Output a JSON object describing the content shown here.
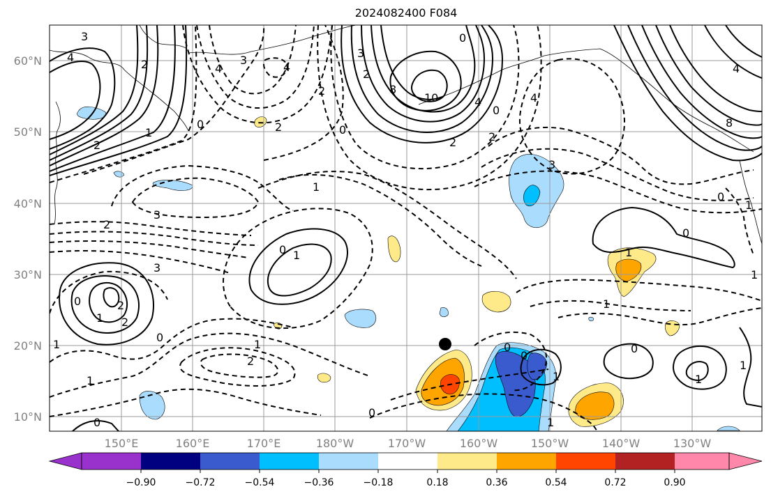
{
  "figure": {
    "title": "2024082400 F084",
    "lat_ticks": [
      "60°N",
      "50°N",
      "40°N",
      "30°N",
      "20°N",
      "10°N"
    ],
    "lon_ticks": [
      "150°E",
      "160°E",
      "170°E",
      "180°W",
      "170°W",
      "160°W",
      "150°W",
      "140°W",
      "130°W"
    ]
  },
  "colorbar": {
    "ticks": [
      "−0.90",
      "−0.72",
      "−0.54",
      "−0.36",
      "−0.18",
      "0.18",
      "0.36",
      "0.54",
      "0.72",
      "0.90"
    ],
    "colors": [
      "#9932cc",
      "#000080",
      "#3a5bcd",
      "#00bfff",
      "#aadcfd",
      "#ffffff",
      "#ffea8a",
      "#ffa500",
      "#ff4500",
      "#b22222",
      "#ff88aa"
    ],
    "extend": "both"
  },
  "contour_labels": {
    "l1": "3",
    "l2": "4",
    "l3": "2",
    "l4": "0",
    "l5": "1",
    "l6": "2",
    "l7": "4",
    "l8": "3",
    "l9": "2",
    "l10": "0",
    "l11": "3",
    "l12": "8",
    "l13": "10",
    "l14": "4",
    "l15": "2",
    "l16": "0",
    "l17": "2",
    "l18": "4",
    "l19": "2",
    "l20": "0",
    "l21": "2",
    "l22": "3",
    "l23": "4",
    "l24": "1",
    "l25": "3",
    "l26": "2",
    "l27": "1",
    "l28": "0",
    "l29": "1",
    "l30": "1",
    "l31": "2",
    "l32": "0",
    "l33": "1",
    "l34": "2",
    "l35": "1",
    "l36": "0",
    "l37": "0",
    "l38": "1",
    "l39": "0",
    "l40": "0",
    "l41": "1",
    "l42": "0",
    "l43": "1",
    "l44": "1",
    "l45": "0",
    "l46": "1",
    "l47": "1",
    "l48": "3",
    "l49": "2",
    "l50": "1",
    "l51": "1",
    "l52": "0",
    "l53": "8",
    "l54": "4",
    "l55": "0"
  },
  "legend": {
    "shading": "filled colour field",
    "contours": "solid = positive, dashed = negative",
    "marker": "black dot"
  }
}
